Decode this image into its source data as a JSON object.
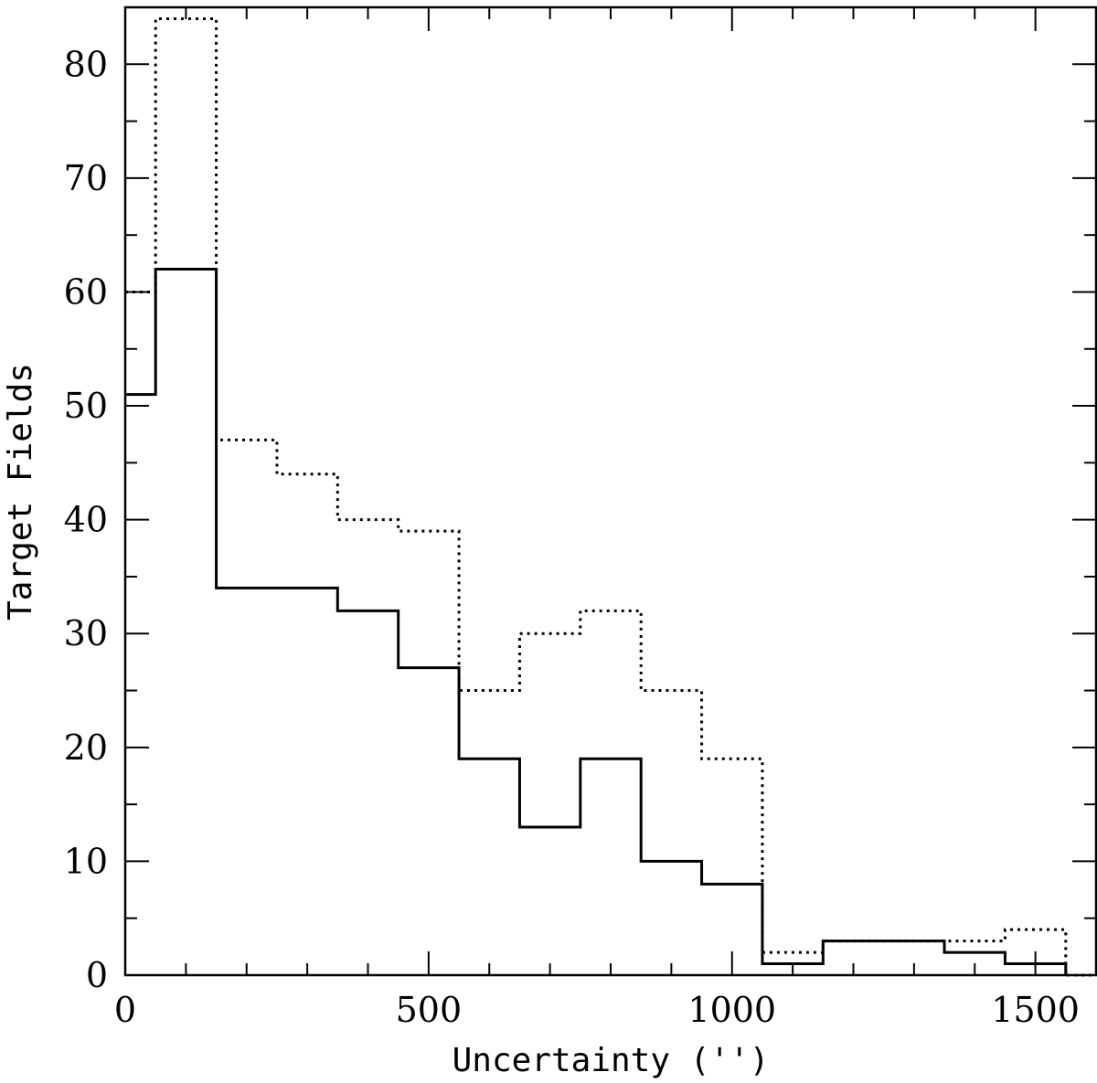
{
  "chart_data": {
    "type": "histogram",
    "title": "",
    "xlabel": "Uncertainty ('')",
    "ylabel": "Target Fields",
    "xlim": [
      0,
      1600
    ],
    "ylim": [
      0,
      85
    ],
    "x_ticks_major": [
      0,
      500,
      1000,
      1500
    ],
    "x_tick_labels": [
      "0",
      "500",
      "1000",
      "1500"
    ],
    "y_ticks_major": [
      0,
      10,
      20,
      30,
      40,
      50,
      60,
      70,
      80
    ],
    "y_tick_labels": [
      "0",
      "10",
      "20",
      "30",
      "40",
      "50",
      "60",
      "70",
      "80"
    ],
    "bin_edges": [
      0,
      50,
      150,
      250,
      350,
      450,
      550,
      650,
      750,
      850,
      950,
      1050,
      1150,
      1250,
      1350,
      1450,
      1550
    ],
    "series": [
      {
        "style": "solid",
        "color": "#000000",
        "values": [
          51,
          62,
          34,
          34,
          32,
          27,
          19,
          13,
          19,
          10,
          8,
          1,
          3,
          3,
          2,
          1
        ]
      },
      {
        "style": "dotted",
        "color": "#000000",
        "values": [
          60,
          84,
          47,
          44,
          40,
          39,
          25,
          30,
          32,
          25,
          19,
          2,
          3,
          3,
          3,
          4
        ]
      }
    ],
    "grid": false,
    "legend": "none"
  }
}
